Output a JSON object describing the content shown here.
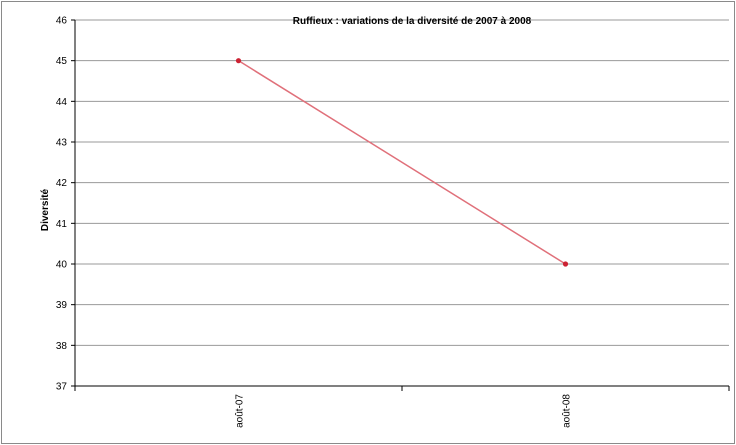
{
  "chart_data": {
    "type": "line",
    "title": "Ruffieux : variations de la diversité de 2007 à 2008",
    "xlabel": "",
    "ylabel": "Diversité",
    "categories": [
      "août-07",
      "août-08"
    ],
    "series": [
      {
        "values": [
          45,
          40
        ]
      }
    ],
    "ylim": [
      37,
      46
    ],
    "yticks": [
      37,
      38,
      39,
      40,
      41,
      42,
      43,
      44,
      45,
      46
    ],
    "grid": true,
    "legend": "none",
    "colors": {
      "line": "#e0707a",
      "marker": "#cc2233",
      "grid": "#999999",
      "axis": "#000000"
    }
  }
}
